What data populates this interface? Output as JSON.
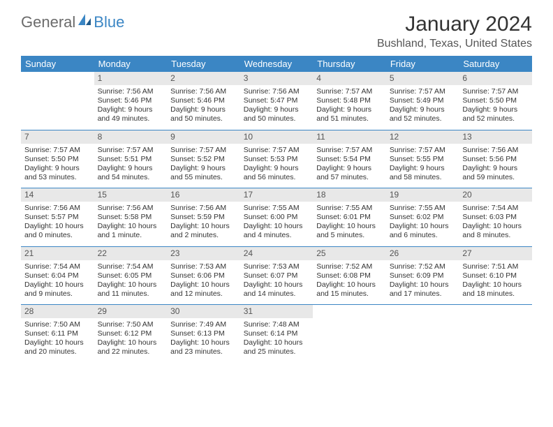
{
  "logo": {
    "text1": "General",
    "text2": "Blue",
    "accent_color": "#3b86c4",
    "gray_color": "#6b6b6b"
  },
  "title": "January 2024",
  "location": "Bushland, Texas, United States",
  "header_bg": "#3b86c4",
  "daynum_bg": "#e8e8e8",
  "row_border_color": "#3b86c4",
  "days_of_week": [
    "Sunday",
    "Monday",
    "Tuesday",
    "Wednesday",
    "Thursday",
    "Friday",
    "Saturday"
  ],
  "weeks": [
    [
      {
        "n": "",
        "sr": "",
        "ss": "",
        "dl": ""
      },
      {
        "n": "1",
        "sr": "Sunrise: 7:56 AM",
        "ss": "Sunset: 5:46 PM",
        "dl": "Daylight: 9 hours and 49 minutes."
      },
      {
        "n": "2",
        "sr": "Sunrise: 7:56 AM",
        "ss": "Sunset: 5:46 PM",
        "dl": "Daylight: 9 hours and 50 minutes."
      },
      {
        "n": "3",
        "sr": "Sunrise: 7:56 AM",
        "ss": "Sunset: 5:47 PM",
        "dl": "Daylight: 9 hours and 50 minutes."
      },
      {
        "n": "4",
        "sr": "Sunrise: 7:57 AM",
        "ss": "Sunset: 5:48 PM",
        "dl": "Daylight: 9 hours and 51 minutes."
      },
      {
        "n": "5",
        "sr": "Sunrise: 7:57 AM",
        "ss": "Sunset: 5:49 PM",
        "dl": "Daylight: 9 hours and 52 minutes."
      },
      {
        "n": "6",
        "sr": "Sunrise: 7:57 AM",
        "ss": "Sunset: 5:50 PM",
        "dl": "Daylight: 9 hours and 52 minutes."
      }
    ],
    [
      {
        "n": "7",
        "sr": "Sunrise: 7:57 AM",
        "ss": "Sunset: 5:50 PM",
        "dl": "Daylight: 9 hours and 53 minutes."
      },
      {
        "n": "8",
        "sr": "Sunrise: 7:57 AM",
        "ss": "Sunset: 5:51 PM",
        "dl": "Daylight: 9 hours and 54 minutes."
      },
      {
        "n": "9",
        "sr": "Sunrise: 7:57 AM",
        "ss": "Sunset: 5:52 PM",
        "dl": "Daylight: 9 hours and 55 minutes."
      },
      {
        "n": "10",
        "sr": "Sunrise: 7:57 AM",
        "ss": "Sunset: 5:53 PM",
        "dl": "Daylight: 9 hours and 56 minutes."
      },
      {
        "n": "11",
        "sr": "Sunrise: 7:57 AM",
        "ss": "Sunset: 5:54 PM",
        "dl": "Daylight: 9 hours and 57 minutes."
      },
      {
        "n": "12",
        "sr": "Sunrise: 7:57 AM",
        "ss": "Sunset: 5:55 PM",
        "dl": "Daylight: 9 hours and 58 minutes."
      },
      {
        "n": "13",
        "sr": "Sunrise: 7:56 AM",
        "ss": "Sunset: 5:56 PM",
        "dl": "Daylight: 9 hours and 59 minutes."
      }
    ],
    [
      {
        "n": "14",
        "sr": "Sunrise: 7:56 AM",
        "ss": "Sunset: 5:57 PM",
        "dl": "Daylight: 10 hours and 0 minutes."
      },
      {
        "n": "15",
        "sr": "Sunrise: 7:56 AM",
        "ss": "Sunset: 5:58 PM",
        "dl": "Daylight: 10 hours and 1 minute."
      },
      {
        "n": "16",
        "sr": "Sunrise: 7:56 AM",
        "ss": "Sunset: 5:59 PM",
        "dl": "Daylight: 10 hours and 2 minutes."
      },
      {
        "n": "17",
        "sr": "Sunrise: 7:55 AM",
        "ss": "Sunset: 6:00 PM",
        "dl": "Daylight: 10 hours and 4 minutes."
      },
      {
        "n": "18",
        "sr": "Sunrise: 7:55 AM",
        "ss": "Sunset: 6:01 PM",
        "dl": "Daylight: 10 hours and 5 minutes."
      },
      {
        "n": "19",
        "sr": "Sunrise: 7:55 AM",
        "ss": "Sunset: 6:02 PM",
        "dl": "Daylight: 10 hours and 6 minutes."
      },
      {
        "n": "20",
        "sr": "Sunrise: 7:54 AM",
        "ss": "Sunset: 6:03 PM",
        "dl": "Daylight: 10 hours and 8 minutes."
      }
    ],
    [
      {
        "n": "21",
        "sr": "Sunrise: 7:54 AM",
        "ss": "Sunset: 6:04 PM",
        "dl": "Daylight: 10 hours and 9 minutes."
      },
      {
        "n": "22",
        "sr": "Sunrise: 7:54 AM",
        "ss": "Sunset: 6:05 PM",
        "dl": "Daylight: 10 hours and 11 minutes."
      },
      {
        "n": "23",
        "sr": "Sunrise: 7:53 AM",
        "ss": "Sunset: 6:06 PM",
        "dl": "Daylight: 10 hours and 12 minutes."
      },
      {
        "n": "24",
        "sr": "Sunrise: 7:53 AM",
        "ss": "Sunset: 6:07 PM",
        "dl": "Daylight: 10 hours and 14 minutes."
      },
      {
        "n": "25",
        "sr": "Sunrise: 7:52 AM",
        "ss": "Sunset: 6:08 PM",
        "dl": "Daylight: 10 hours and 15 minutes."
      },
      {
        "n": "26",
        "sr": "Sunrise: 7:52 AM",
        "ss": "Sunset: 6:09 PM",
        "dl": "Daylight: 10 hours and 17 minutes."
      },
      {
        "n": "27",
        "sr": "Sunrise: 7:51 AM",
        "ss": "Sunset: 6:10 PM",
        "dl": "Daylight: 10 hours and 18 minutes."
      }
    ],
    [
      {
        "n": "28",
        "sr": "Sunrise: 7:50 AM",
        "ss": "Sunset: 6:11 PM",
        "dl": "Daylight: 10 hours and 20 minutes."
      },
      {
        "n": "29",
        "sr": "Sunrise: 7:50 AM",
        "ss": "Sunset: 6:12 PM",
        "dl": "Daylight: 10 hours and 22 minutes."
      },
      {
        "n": "30",
        "sr": "Sunrise: 7:49 AM",
        "ss": "Sunset: 6:13 PM",
        "dl": "Daylight: 10 hours and 23 minutes."
      },
      {
        "n": "31",
        "sr": "Sunrise: 7:48 AM",
        "ss": "Sunset: 6:14 PM",
        "dl": "Daylight: 10 hours and 25 minutes."
      },
      {
        "n": "",
        "sr": "",
        "ss": "",
        "dl": ""
      },
      {
        "n": "",
        "sr": "",
        "ss": "",
        "dl": ""
      },
      {
        "n": "",
        "sr": "",
        "ss": "",
        "dl": ""
      }
    ]
  ]
}
